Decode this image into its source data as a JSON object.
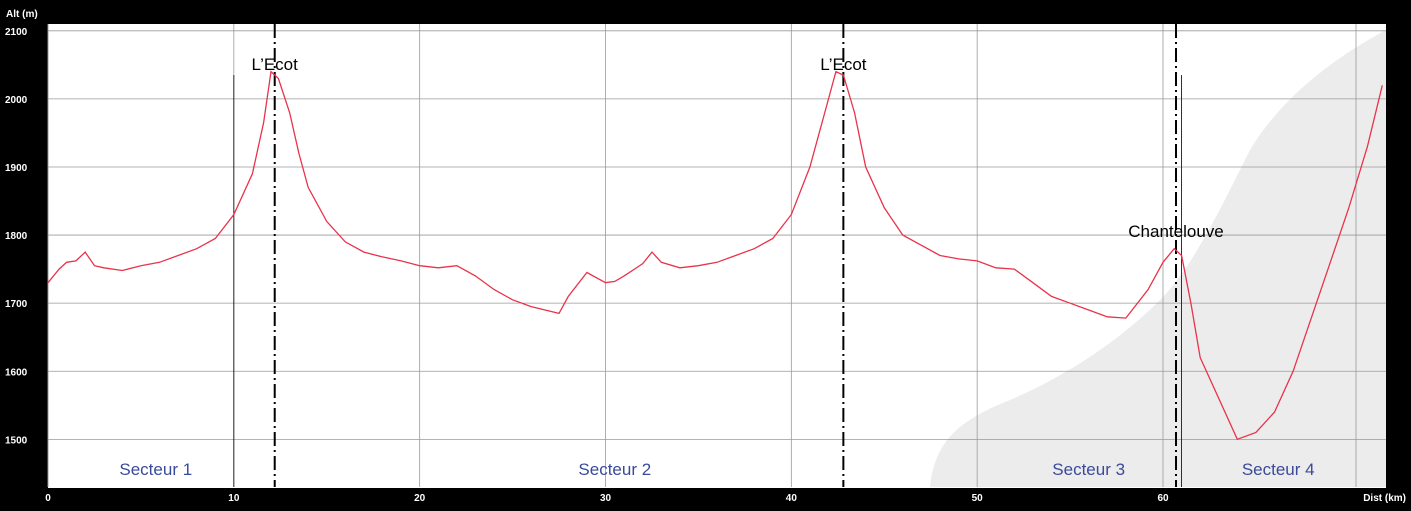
{
  "chart_data": {
    "type": "line",
    "xlabel": "Dist (km)",
    "ylabel": "Alt (m)",
    "xlim": [
      0,
      72
    ],
    "ylim": [
      1430,
      2110
    ],
    "x_ticks": [
      "0",
      "10",
      "20",
      "30",
      "40",
      "50",
      "60"
    ],
    "y_ticks": [
      "1500",
      "1600",
      "1700",
      "1800",
      "1900",
      "2000",
      "2100"
    ],
    "grid": true,
    "series": [
      {
        "color": "#e8334a",
        "x": [
          0,
          0.6,
          1,
          1.5,
          2,
          2.5,
          3,
          4,
          5,
          6,
          7,
          8,
          9,
          10,
          11,
          11.6,
          12,
          12.4,
          13,
          13.5,
          14,
          15,
          16,
          17,
          18,
          19,
          20,
          21,
          22,
          23,
          24,
          25,
          26,
          27.5,
          28,
          29,
          30,
          30.5,
          31,
          32,
          32.5,
          33,
          34,
          35,
          36,
          37,
          38,
          39,
          40,
          41,
          41.8,
          42.4,
          42.8,
          43.4,
          44,
          45,
          46,
          47,
          48,
          49,
          50,
          51,
          52,
          53,
          54,
          55,
          56,
          57,
          58,
          59.2,
          60,
          60.6,
          61,
          61.5,
          62,
          63,
          64,
          65,
          66,
          67,
          68,
          69,
          70,
          71,
          71.8
        ],
        "y": [
          1730,
          1750,
          1760,
          1762,
          1775,
          1755,
          1752,
          1748,
          1755,
          1760,
          1770,
          1780,
          1795,
          1830,
          1890,
          1965,
          2040,
          2030,
          1980,
          1920,
          1870,
          1820,
          1790,
          1775,
          1768,
          1762,
          1755,
          1752,
          1755,
          1740,
          1720,
          1705,
          1695,
          1685,
          1710,
          1745,
          1730,
          1732,
          1740,
          1758,
          1775,
          1760,
          1752,
          1755,
          1760,
          1770,
          1780,
          1795,
          1830,
          1900,
          1980,
          2040,
          2035,
          1980,
          1900,
          1840,
          1800,
          1785,
          1770,
          1765,
          1762,
          1752,
          1750,
          1730,
          1710,
          1700,
          1690,
          1680,
          1678,
          1720,
          1760,
          1780,
          1770,
          1700,
          1620,
          1560,
          1500,
          1510,
          1540,
          1600,
          1680,
          1760,
          1840,
          1930,
          2020
        ]
      }
    ],
    "markers": [
      {
        "x": 12.2,
        "label": "L’Ecot"
      },
      {
        "x": 42.8,
        "label": "L’Ecot"
      },
      {
        "x": 60.7,
        "label": "Chantelouve"
      }
    ],
    "sectors": [
      {
        "label": "Secteur 1",
        "x": 5.8
      },
      {
        "label": "Secteur 2",
        "x": 30.5
      },
      {
        "label": "Secteur 3",
        "x": 56
      },
      {
        "label": "Secteur 4",
        "x": 66.2
      }
    ]
  }
}
